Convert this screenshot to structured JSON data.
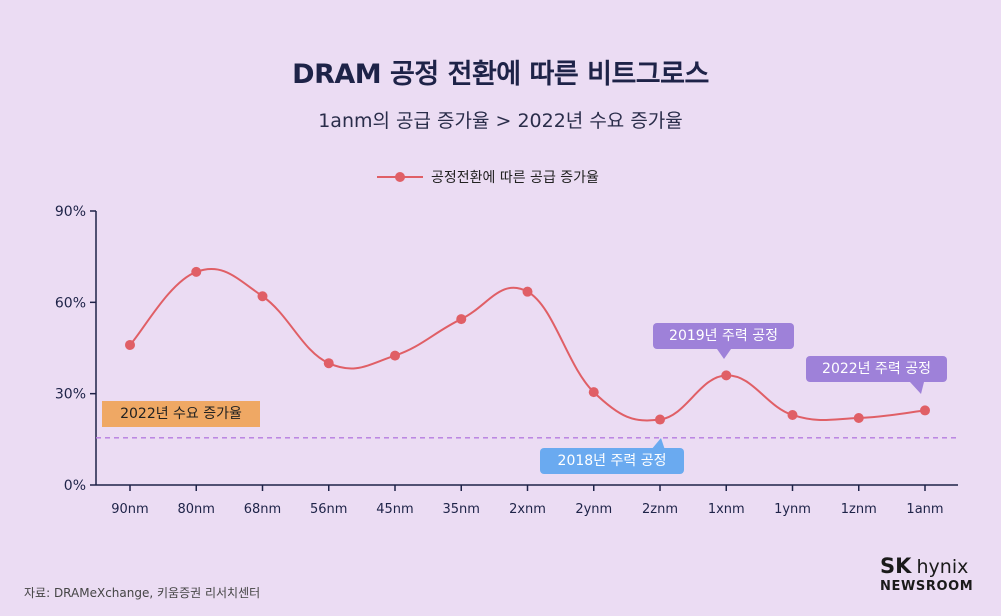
{
  "title": "DRAM 공정 전환에 따른 비트그로스",
  "subtitle": "1anm의 공급 증가율 > 2022년 수요 증가율",
  "legend_label": "공정전환에 따른 공급 증가율",
  "annotations": {
    "demand_label": "2022년 수요 증가율",
    "tag_2018": "2018년 주력 공정",
    "tag_2019": "2019년 주력 공정",
    "tag_2022": "2022년 주력 공정"
  },
  "source": "자료: DRAMeXchange,  키움증권 리서치센터",
  "logo": {
    "brand_bold": "SK",
    "brand": "hynix",
    "sub": "NEWSROOM"
  },
  "colors": {
    "line": "#e05f66",
    "demand_line": "#b67ce0",
    "background": "#ebdcf3"
  },
  "chart_data": {
    "type": "line",
    "title": "DRAM 공정 전환에 따른 비트그로스",
    "categories": [
      "90nm",
      "80nm",
      "68nm",
      "56nm",
      "45nm",
      "35nm",
      "2xnm",
      "2ynm",
      "2znm",
      "1xnm",
      "1ynm",
      "1znm",
      "1anm"
    ],
    "series": [
      {
        "name": "공정전환에 따른 공급 증가율",
        "values": [
          46,
          70,
          62,
          40,
          42.5,
          54.5,
          63.5,
          30.5,
          21.5,
          36,
          23,
          22,
          24.5
        ]
      }
    ],
    "reference_line": {
      "name": "2022년 수요 증가율",
      "value": 15.5
    },
    "yticks": [
      0,
      30,
      60,
      90
    ],
    "ytick_labels": [
      "0%",
      "30%",
      "60%",
      "90%"
    ],
    "ylim": [
      0,
      90
    ],
    "xlabel": "",
    "ylabel": ""
  }
}
